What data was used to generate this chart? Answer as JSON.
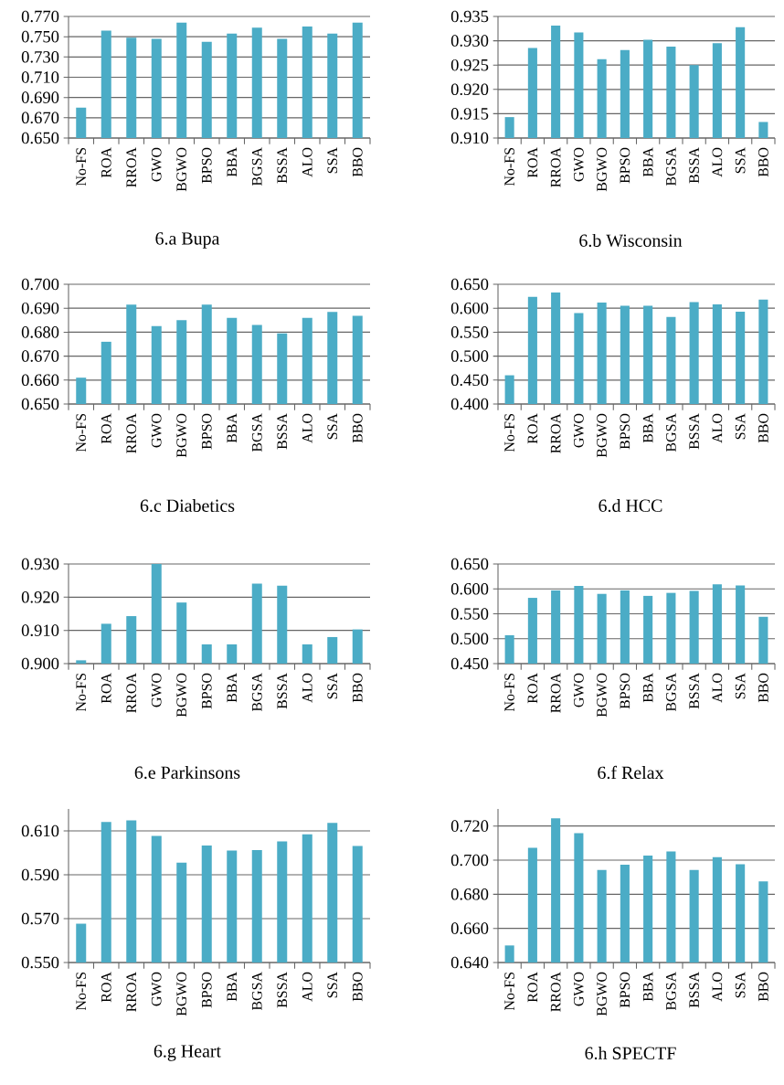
{
  "chart_data": [
    {
      "type": "bar",
      "title": "6.a Bupa",
      "categories": [
        "No-FS",
        "ROA",
        "RROA",
        "GWO",
        "BGWO",
        "BPSO",
        "BBA",
        "BGSA",
        "BSSA",
        "ALO",
        "SSA",
        "BBO"
      ],
      "values": [
        0.68,
        0.756,
        0.749,
        0.748,
        0.764,
        0.745,
        0.753,
        0.759,
        0.748,
        0.76,
        0.753,
        0.764
      ],
      "color": "#4bacc6",
      "ylim": [
        0.65,
        0.77
      ],
      "yticks": [
        {
          "value": 0.65,
          "label": "0.650"
        },
        {
          "value": 0.67,
          "label": "0.670"
        },
        {
          "value": 0.69,
          "label": "0.690"
        },
        {
          "value": 0.71,
          "label": "0.710"
        },
        {
          "value": 0.73,
          "label": "0.730"
        },
        {
          "value": 0.75,
          "label": "0.750"
        },
        {
          "value": 0.77,
          "label": "0.770"
        }
      ],
      "grid": "y"
    },
    {
      "type": "bar",
      "title": "6.b Wisconsin",
      "categories": [
        "No-FS",
        "ROA",
        "RROA",
        "GWO",
        "BGWO",
        "BPSO",
        "BBA",
        "BGSA",
        "BSSA",
        "ALO",
        "SSA",
        "BBO"
      ],
      "values": [
        0.9143,
        0.9285,
        0.9331,
        0.9317,
        0.9262,
        0.9281,
        0.9302,
        0.9288,
        0.925,
        0.9295,
        0.9328,
        0.9133
      ],
      "color": "#4bacc6",
      "ylim": [
        0.91,
        0.935
      ],
      "yticks": [
        {
          "value": 0.91,
          "label": "0.910"
        },
        {
          "value": 0.915,
          "label": "0.915"
        },
        {
          "value": 0.92,
          "label": "0.920"
        },
        {
          "value": 0.925,
          "label": "0.925"
        },
        {
          "value": 0.93,
          "label": "0.930"
        },
        {
          "value": 0.935,
          "label": "0.935"
        }
      ],
      "grid": "y"
    },
    {
      "type": "bar",
      "title": "6.c Diabetics",
      "categories": [
        "No-FS",
        "ROA",
        "RROA",
        "GWO",
        "BGWO",
        "BPSO",
        "BBA",
        "BGSA",
        "BSSA",
        "ALO",
        "SSA",
        "BBO"
      ],
      "values": [
        0.661,
        0.676,
        0.6915,
        0.6825,
        0.685,
        0.6915,
        0.686,
        0.683,
        0.6795,
        0.686,
        0.6885,
        0.6868
      ],
      "color": "#4bacc6",
      "ylim": [
        0.65,
        0.7
      ],
      "yticks": [
        {
          "value": 0.65,
          "label": "0.650"
        },
        {
          "value": 0.66,
          "label": "0.660"
        },
        {
          "value": 0.67,
          "label": "0.670"
        },
        {
          "value": 0.68,
          "label": "0.680"
        },
        {
          "value": 0.69,
          "label": "0.690"
        },
        {
          "value": 0.7,
          "label": "0.700"
        }
      ],
      "grid": "y"
    },
    {
      "type": "bar",
      "title": "6.d HCC",
      "categories": [
        "No-FS",
        "ROA",
        "RROA",
        "GWO",
        "BGWO",
        "BPSO",
        "BBA",
        "BGSA",
        "BSSA",
        "ALO",
        "SSA",
        "BBO"
      ],
      "values": [
        0.46,
        0.624,
        0.633,
        0.59,
        0.612,
        0.605,
        0.605,
        0.582,
        0.613,
        0.608,
        0.593,
        0.618
      ],
      "color": "#4bacc6",
      "ylim": [
        0.4,
        0.65
      ],
      "yticks": [
        {
          "value": 0.4,
          "label": "0.400"
        },
        {
          "value": 0.45,
          "label": "0.450"
        },
        {
          "value": 0.5,
          "label": "0.500"
        },
        {
          "value": 0.55,
          "label": "0.550"
        },
        {
          "value": 0.6,
          "label": "0.600"
        },
        {
          "value": 0.65,
          "label": "0.650"
        }
      ],
      "grid": "y"
    },
    {
      "type": "bar",
      "title": "6.e Parkinsons",
      "categories": [
        "No-FS",
        "ROA",
        "RROA",
        "GWO",
        "BGWO",
        "BPSO",
        "BBA",
        "BGSA",
        "BSSA",
        "ALO",
        "SSA",
        "BBO"
      ],
      "values": [
        0.901,
        0.912,
        0.9143,
        0.93,
        0.9184,
        0.9058,
        0.9058,
        0.9241,
        0.9235,
        0.9058,
        0.908,
        0.9103
      ],
      "color": "#4bacc6",
      "ylim": [
        0.9,
        0.93
      ],
      "yticks": [
        {
          "value": 0.9,
          "label": "0.900"
        },
        {
          "value": 0.91,
          "label": "0.910"
        },
        {
          "value": 0.92,
          "label": "0.920"
        },
        {
          "value": 0.93,
          "label": "0.930"
        }
      ],
      "grid": "y"
    },
    {
      "type": "bar",
      "title": "6.f Relax",
      "categories": [
        "No-FS",
        "ROA",
        "RROA",
        "GWO",
        "BGWO",
        "BPSO",
        "BBA",
        "BGSA",
        "BSSA",
        "ALO",
        "SSA",
        "BBO"
      ],
      "values": [
        0.507,
        0.582,
        0.597,
        0.606,
        0.59,
        0.597,
        0.586,
        0.592,
        0.596,
        0.609,
        0.607,
        0.544
      ],
      "color": "#4bacc6",
      "ylim": [
        0.45,
        0.65
      ],
      "yticks": [
        {
          "value": 0.45,
          "label": "0.450"
        },
        {
          "value": 0.5,
          "label": "0.500"
        },
        {
          "value": 0.55,
          "label": "0.550"
        },
        {
          "value": 0.6,
          "label": "0.600"
        },
        {
          "value": 0.65,
          "label": "0.650"
        }
      ],
      "grid": "y"
    },
    {
      "type": "bar",
      "title": "6.g Heart",
      "categories": [
        "No-FS",
        "ROA",
        "RROA",
        "GWO",
        "BGWO",
        "BPSO",
        "BBA",
        "BGSA",
        "BSSA",
        "ALO",
        "SSA",
        "BBO"
      ],
      "values": [
        0.5677,
        0.6141,
        0.6148,
        0.6077,
        0.5955,
        0.6033,
        0.601,
        0.6013,
        0.6052,
        0.6084,
        0.6137,
        0.6031
      ],
      "color": "#4bacc6",
      "ylim": [
        0.55,
        0.62
      ],
      "yticks": [
        {
          "value": 0.55,
          "label": "0.550"
        },
        {
          "value": 0.57,
          "label": "0.570"
        },
        {
          "value": 0.59,
          "label": "0.590"
        },
        {
          "value": 0.61,
          "label": "0.610"
        }
      ],
      "grid": "y"
    },
    {
      "type": "bar",
      "title": "6.h SPECTF",
      "categories": [
        "No-FS",
        "ROA",
        "RROA",
        "GWO",
        "BGWO",
        "BPSO",
        "BBA",
        "BGSA",
        "BSSA",
        "ALO",
        "SSA",
        "BBO"
      ],
      "values": [
        0.65,
        0.7072,
        0.7245,
        0.7158,
        0.6943,
        0.6973,
        0.7027,
        0.7051,
        0.6943,
        0.7018,
        0.6976,
        0.6875
      ],
      "color": "#4bacc6",
      "ylim": [
        0.64,
        0.73
      ],
      "yticks": [
        {
          "value": 0.64,
          "label": "0.640"
        },
        {
          "value": 0.66,
          "label": "0.660"
        },
        {
          "value": 0.68,
          "label": "0.680"
        },
        {
          "value": 0.7,
          "label": "0.700"
        },
        {
          "value": 0.72,
          "label": "0.720"
        }
      ],
      "grid": "y"
    }
  ]
}
